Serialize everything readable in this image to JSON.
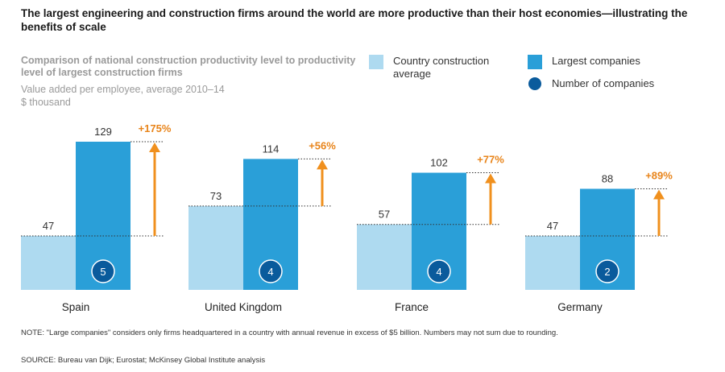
{
  "headline": "The largest engineering and construction firms around the world are more productive than their host economies—illustrating the benefits of scale",
  "subtitle": "Comparison of national construction productivity level to productivity level of largest construction firms",
  "caption_line1": "Value added per employee, average 2010–14",
  "caption_line2": "$ thousand",
  "legend": {
    "country": "Country construction average",
    "largest": "Largest companies",
    "number": "Number of companies"
  },
  "colors": {
    "country": "#aedaf0",
    "largest": "#2a9fd8",
    "circle": "#0a5b9c",
    "arrow": "#f0901e",
    "pct_text": "#e8841a"
  },
  "chart_data": {
    "type": "bar",
    "title": "Comparison of national construction productivity level to productivity level of largest construction firms",
    "ylabel": "Value added per employee, average 2010–14, $ thousand",
    "categories": [
      "Spain",
      "United Kingdom",
      "France",
      "Germany"
    ],
    "series": [
      {
        "name": "Country construction average",
        "values": [
          47,
          73,
          57,
          47
        ]
      },
      {
        "name": "Largest companies",
        "values": [
          129,
          114,
          102,
          88
        ]
      }
    ],
    "number_of_companies": [
      5,
      4,
      4,
      2
    ],
    "difference_labels": [
      "+175%",
      "+56%",
      "+77%",
      "+89%"
    ],
    "value_labels_country": [
      "47",
      "73",
      "57",
      "47"
    ],
    "value_labels_largest": [
      "129",
      "114",
      "102",
      "88"
    ],
    "circle_labels": [
      "5",
      "4",
      "4",
      "2"
    ],
    "ylim": [
      0,
      129
    ]
  },
  "note": "NOTE: \"Large companies\" considers only firms headquartered in a country with annual revenue in excess of $5 billion. Numbers may not sum due to rounding.",
  "source": "SOURCE:  Bureau van Dijk; Eurostat; McKinsey Global Institute analysis"
}
